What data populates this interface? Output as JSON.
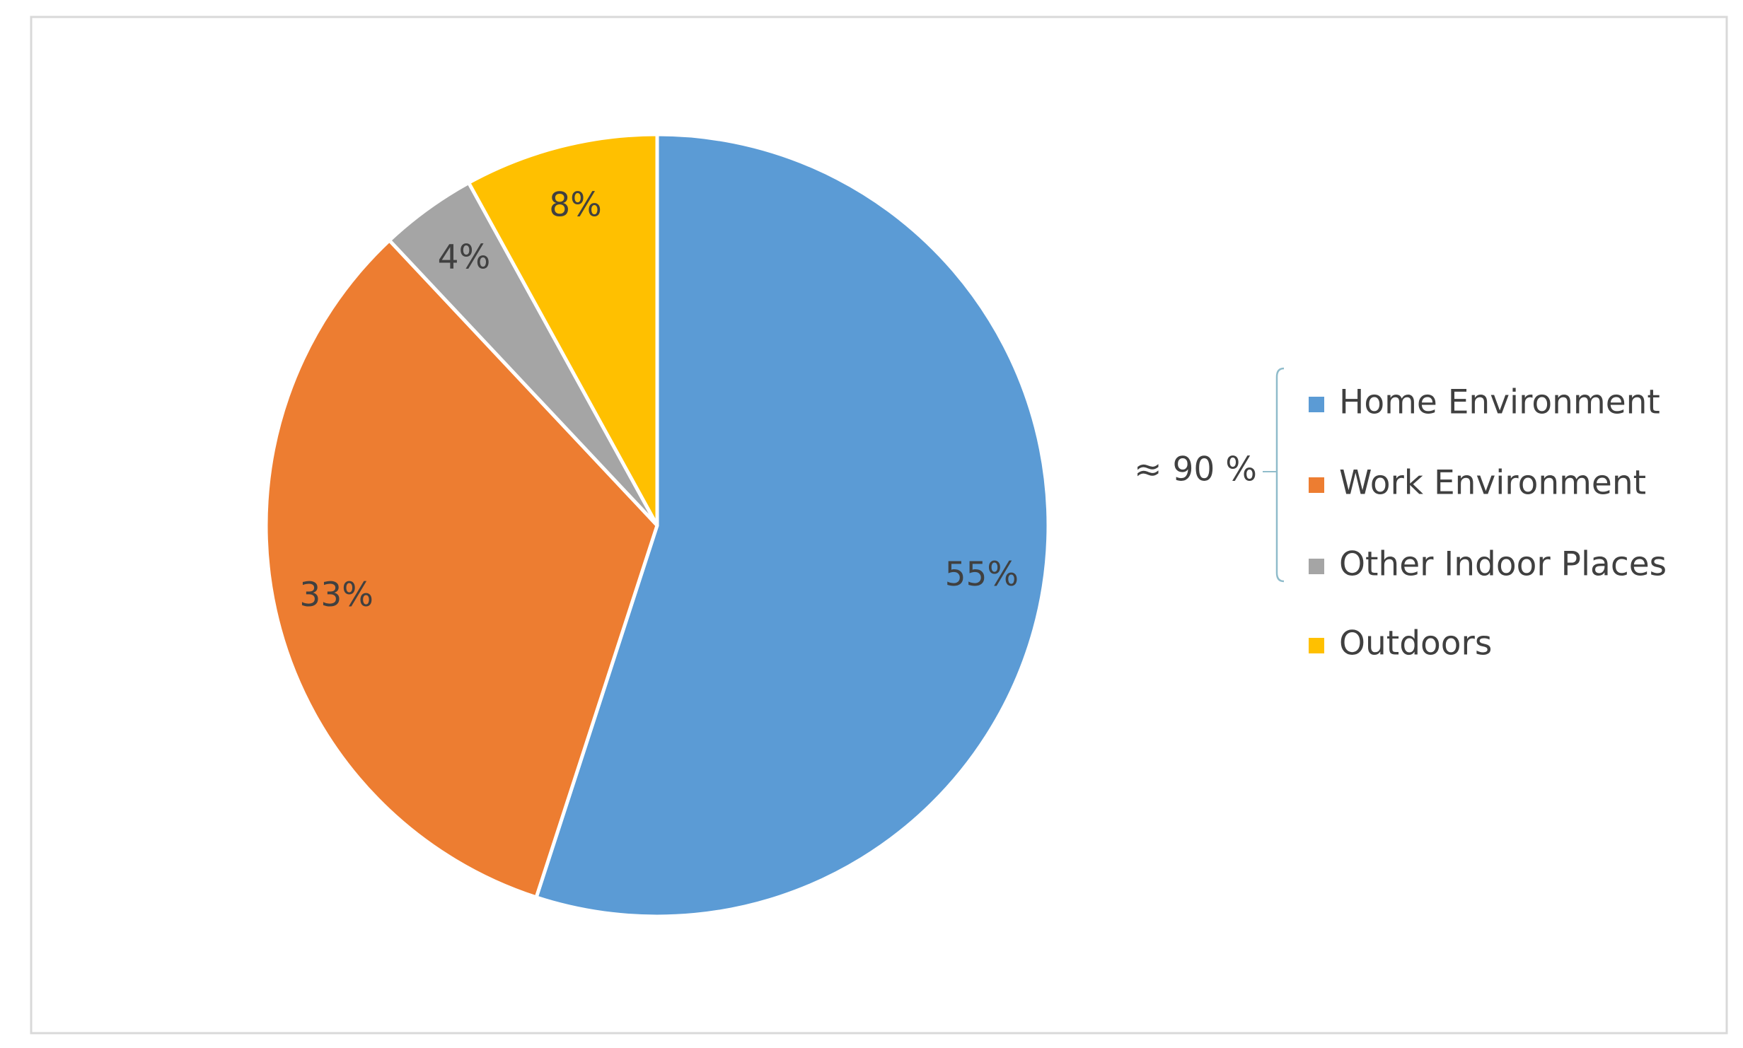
{
  "chart_data": {
    "type": "pie",
    "categories": [
      "Home Environment",
      "Work Environment",
      "Other Indoor Places",
      "Outdoors"
    ],
    "values": [
      55,
      33,
      4,
      8
    ],
    "value_labels": [
      "55%",
      "33%",
      "4%",
      "8%"
    ],
    "colors": [
      "#5b9bd5",
      "#ed7d31",
      "#a5a5a5",
      "#ffc000"
    ],
    "legend": "right",
    "annotations": [
      "≈ 90 %"
    ]
  }
}
